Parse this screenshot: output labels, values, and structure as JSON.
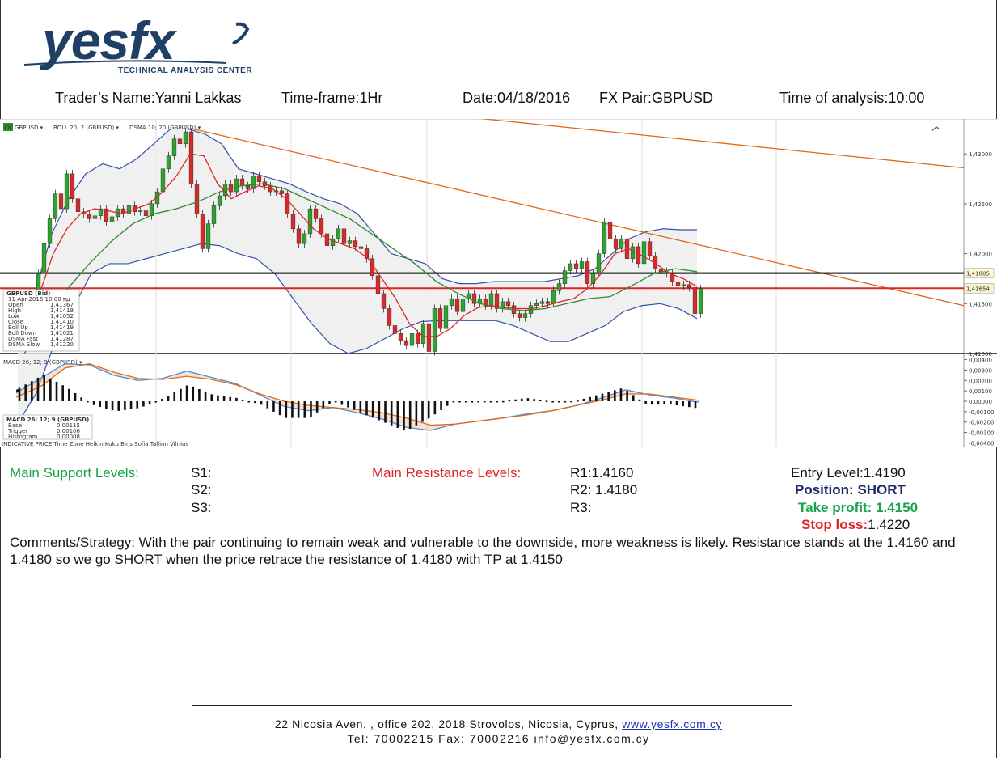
{
  "logo": {
    "word": "yesfx",
    "subtitle": "TECHNICAL ANALYSIS CENTER",
    "color": "#1f3f66"
  },
  "header": {
    "trader": "Trader’s Name:Yanni Lakkas",
    "timeframe": "Time-frame:1Hr",
    "date": "Date:04/18/2016",
    "pair": "FX Pair:GBPUSD",
    "time": "Time of analysis:10:00"
  },
  "chart_toolbar": {
    "fx_badge": "FX",
    "symbol": "GBPUSD ▾",
    "boll": "BOLL 20; 2 (GBPUSD) ▾",
    "dsma": "DSMA 10; 20 (GBPUSD) ▾",
    "macd": "MACD 26; 12; 9 (GBPUSD) ▾"
  },
  "chart_data": [
    {
      "type": "candlestick",
      "title": "GBPUSD",
      "ylim": [
        1.41,
        1.4335
      ],
      "y_ticks": [
        "1,43000",
        "1,42500",
        "1,42000",
        "1,41500",
        "1,41000"
      ],
      "y_tick_values": [
        1.43,
        1.425,
        1.42,
        1.415,
        1.41
      ],
      "price_tags": [
        {
          "label": "1,41805",
          "value": 1.41805,
          "color": "#000000",
          "bg": "#fff8d0"
        },
        {
          "label": "1,41654",
          "value": 1.41654,
          "color": "#dc2626",
          "bg": "#f6f3c9"
        }
      ],
      "closes": [
        1.4128,
        1.4145,
        1.418,
        1.421,
        1.4235,
        1.426,
        1.4245,
        1.428,
        1.4255,
        1.4242,
        1.424,
        1.4235,
        1.4238,
        1.4245,
        1.4232,
        1.4237,
        1.4245,
        1.424,
        1.4248,
        1.4242,
        1.4243,
        1.4238,
        1.425,
        1.4262,
        1.4285,
        1.4298,
        1.4315,
        1.431,
        1.4322,
        1.427,
        1.424,
        1.4205,
        1.423,
        1.4248,
        1.4258,
        1.427,
        1.4262,
        1.4275,
        1.4268,
        1.4265,
        1.4278,
        1.4272,
        1.4268,
        1.4262,
        1.4263,
        1.426,
        1.424,
        1.4225,
        1.421,
        1.422,
        1.4245,
        1.4235,
        1.422,
        1.4208,
        1.4215,
        1.4225,
        1.421,
        1.4213,
        1.4207,
        1.4205,
        1.4195,
        1.4178,
        1.416,
        1.4145,
        1.4128,
        1.412,
        1.4113,
        1.4108,
        1.412,
        1.411,
        1.413,
        1.4102,
        1.4145,
        1.4125,
        1.4148,
        1.4155,
        1.4142,
        1.4155,
        1.416,
        1.415,
        1.4155,
        1.4148,
        1.416,
        1.4145,
        1.4152,
        1.4148,
        1.414,
        1.4136,
        1.414,
        1.4148,
        1.415,
        1.4152,
        1.415,
        1.4163,
        1.417,
        1.4183,
        1.419,
        1.4185,
        1.4192,
        1.417,
        1.418,
        1.42,
        1.4232,
        1.4215,
        1.4205,
        1.4215,
        1.4195,
        1.4207,
        1.419,
        1.4212,
        1.4198,
        1.4185,
        1.4182,
        1.418,
        1.4172,
        1.4168,
        1.4169,
        1.4166,
        1.414,
        1.4165
      ],
      "bollinger_upper": [
        1.411,
        1.416,
        1.422,
        1.4255,
        1.428,
        1.429,
        1.4285,
        1.4295,
        1.431,
        1.4325,
        1.4325,
        1.432,
        1.431,
        1.4285,
        1.428,
        1.4275,
        1.427,
        1.4262,
        1.4255,
        1.425,
        1.424,
        1.422,
        1.42,
        1.4195,
        1.419,
        1.4175,
        1.417,
        1.417,
        1.4172,
        1.4172,
        1.4172,
        1.4172,
        1.4175,
        1.4178,
        1.4185,
        1.42,
        1.4215,
        1.4222,
        1.4225,
        1.4224,
        1.4224
      ],
      "bollinger_lower": [
        1.403,
        1.406,
        1.411,
        1.4145,
        1.418,
        1.419,
        1.419,
        1.4195,
        1.42,
        1.4205,
        1.421,
        1.4208,
        1.42,
        1.4195,
        1.418,
        1.4155,
        1.413,
        1.411,
        1.41,
        1.4105,
        1.4115,
        1.4125,
        1.4132,
        1.4133,
        1.4133,
        1.4133,
        1.4133,
        1.4128,
        1.412,
        1.4112,
        1.4112,
        1.412,
        1.4128,
        1.4142,
        1.4148,
        1.415,
        1.4145,
        1.4135
      ],
      "dsma_fast": [
        1.4135,
        1.416,
        1.42,
        1.4225,
        1.424,
        1.4245,
        1.4243,
        1.424,
        1.4245,
        1.425,
        1.4262,
        1.4278,
        1.43,
        1.4298,
        1.427,
        1.4255,
        1.4262,
        1.4268,
        1.4265,
        1.4255,
        1.424,
        1.4225,
        1.4215,
        1.421,
        1.4205,
        1.4195,
        1.4175,
        1.4155,
        1.413,
        1.4117,
        1.4117,
        1.4125,
        1.4138,
        1.4146,
        1.4148,
        1.4146,
        1.4145,
        1.4145,
        1.4148,
        1.4152,
        1.4155,
        1.4165,
        1.418,
        1.42,
        1.4205,
        1.4198,
        1.419,
        1.418,
        1.4175,
        1.4167
      ],
      "dsma_slow": [
        1.41,
        1.413,
        1.4165,
        1.419,
        1.4212,
        1.423,
        1.424,
        1.4245,
        1.4252,
        1.4262,
        1.4268,
        1.427,
        1.4265,
        1.4255,
        1.4245,
        1.4235,
        1.422,
        1.4205,
        1.419,
        1.4172,
        1.416,
        1.415,
        1.4145,
        1.4143,
        1.4145,
        1.415,
        1.4155,
        1.4157,
        1.4168,
        1.418,
        1.4185,
        1.4182
      ],
      "horizontal_lines": [
        {
          "value": 1.41805,
          "color": "#000000"
        },
        {
          "value": 1.41654,
          "color": "#dc2626"
        }
      ],
      "trendlines": [
        {
          "from": [
            0.33,
            1.4352
          ],
          "to": [
            1.0,
            1.4286
          ],
          "color": "#e06a1a"
        },
        {
          "from": [
            0.2,
            1.4325
          ],
          "to": [
            1.0,
            1.4148
          ],
          "color": "#e06a1a"
        }
      ],
      "info_box": {
        "title": "GBPUSD (Bid)",
        "date": "11-Apr-2016 10:00 πμ",
        "rows": [
          {
            "label": "Open",
            "value": "1,41367"
          },
          {
            "label": "High",
            "value": "1,41419"
          },
          {
            "label": "Low",
            "value": "1,41052"
          },
          {
            "label": "Close",
            "value": "1,41410"
          },
          {
            "label": "Boll Up",
            "value": "1,41419"
          },
          {
            "label": "Boll Down",
            "value": "1,41021"
          },
          {
            "label": "DSMA Fast",
            "value": "1,41287"
          },
          {
            "label": "DSMA Slow",
            "value": "1,41220"
          }
        ]
      }
    },
    {
      "type": "macd",
      "title": "MACD 26; 12; 9 (GBPUSD)",
      "ylim": [
        -0.0042,
        0.0042
      ],
      "y_ticks": [
        "0,00400",
        "0,00300",
        "0,00200",
        "0,00100",
        "0,00000",
        "-0,00100",
        "-0,00200",
        "-0,00300",
        "-0,00400"
      ],
      "y_tick_values": [
        0.004,
        0.003,
        0.002,
        0.001,
        0.0,
        -0.001,
        -0.002,
        -0.003,
        -0.004
      ],
      "base": [
        0.0008,
        0.0022,
        0.0036,
        0.0035,
        0.0025,
        0.002,
        0.0022,
        0.0029,
        0.0023,
        0.0017,
        0.0006,
        -0.0005,
        -0.0009,
        -0.0006,
        -0.0011,
        -0.0017,
        -0.0025,
        -0.0028,
        -0.0022,
        -0.0019,
        -0.0016,
        -0.0012,
        -0.0009,
        -0.0004,
        0.0003,
        0.0011,
        0.0006,
        0.0003,
        -0.0001
      ],
      "trigger": [
        0.0004,
        0.0014,
        0.0032,
        0.0036,
        0.0028,
        0.0022,
        0.0021,
        0.0024,
        0.0021,
        0.0016,
        0.0007,
        0.0,
        -0.0004,
        -0.0006,
        -0.0008,
        -0.0011,
        -0.0016,
        -0.0023,
        -0.0022,
        -0.0019,
        -0.0016,
        -0.0013,
        -0.0009,
        -0.0004,
        0.0001,
        0.0007,
        0.0007,
        0.0004,
        0.0001
      ],
      "histogram_label": "Histogram",
      "info_box": {
        "title": "MACD 26; 12; 9 (GBPUSD)",
        "rows": [
          {
            "label": "Base",
            "value": "0,00115",
            "color": "#2563eb"
          },
          {
            "label": "Trigger",
            "value": "0,00106",
            "color": "#e06a1a"
          },
          {
            "label": "Histogram",
            "value": "0,00008",
            "color": "#111111"
          }
        ]
      },
      "bottom_bar": "INDICATIVE PRICE   Time Zone  Heikin  Kuku  Bins  Sofia  Tallinn  Vilnius"
    }
  ],
  "levels": {
    "support_title": "Main Support Levels:",
    "s1": "S1:",
    "s2": "S2:",
    "s3": "S3:",
    "resistance_title": "Main Resistance  Levels:",
    "r1": "R1:1.4160",
    "r2": "R2: 1.4180",
    "r3": "R3:",
    "entry": "Entry Level:1.4190",
    "position": "Position: SHORT",
    "take_profit": "Take profit: 1.4150",
    "stop_loss_label": "Stop loss:",
    "stop_loss_value": "1.4220"
  },
  "comments": "Comments/Strategy: With the pair continuing to remain weak and vulnerable to the downside, more weakness is likely. Resistance stands at the 1.4160 and 1.4180 so we go SHORT when the price retrace the resistance of 1.4180 with TP at 1.4150",
  "footer": {
    "address": "22 Nicosia Aven. ,  office 202,  2018 Strovolos,  Nicosia,  Cyprus,",
    "website": "www.yesfx.com.cy",
    "contact": "Tel:  70002215  Fax:  70002216  info@yesfx.com.cy"
  },
  "colors": {
    "support": "#16a34a",
    "resistance": "#dc2626",
    "position": "#1e2a6a",
    "bollinger": "#3553a8",
    "dsma_fast": "#dc2626",
    "dsma_slow": "#2e8b2e",
    "trendline": "#e06a1a"
  }
}
